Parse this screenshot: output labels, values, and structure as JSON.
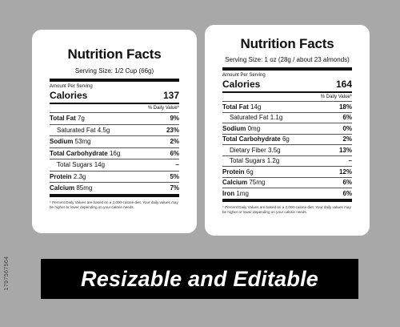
{
  "left": {
    "title": "Nutrition Facts",
    "serving": "Serving Size: 1/2 Cup (66g)",
    "amount_per_serving": "Amount Per Serving",
    "calories_label": "Calories",
    "calories_value": "137",
    "dv_header": "% Daily Value*",
    "rows": [
      {
        "name": "Total Fat",
        "qty": "7g",
        "pct": "9%"
      },
      {
        "name": "Saturated Fat",
        "qty": "4.5g",
        "pct": "23%"
      },
      {
        "name": "Sodium",
        "qty": "53mg",
        "pct": "2%"
      },
      {
        "name": "Total Carbohydrate",
        "qty": "16g",
        "pct": "6%"
      },
      {
        "name": "Total Sugars",
        "qty": "14g",
        "pct": "–"
      },
      {
        "name": "Protein",
        "qty": "2.3g",
        "pct": "5%"
      },
      {
        "name": "Calcium",
        "qty": "85mg",
        "pct": "7%"
      }
    ],
    "footnote": "* Percent Daily Values are based on a 2,000-calorie diet. Your daily values may be higher or lower depending on your calorie needs."
  },
  "right": {
    "title": "Nutrition Facts",
    "serving": "Serving Size: 1 oz (28g / about 23 almonds)",
    "amount_per_serving": "Amount Per Serving",
    "calories_label": "Calories",
    "calories_value": "164",
    "dv_header": "% Daily Value*",
    "rows": [
      {
        "name": "Total Fat",
        "qty": "14g",
        "pct": "18%"
      },
      {
        "name": "Saturated Fat",
        "qty": "1.1g",
        "pct": "6%"
      },
      {
        "name": "Sodium",
        "qty": "0mg",
        "pct": "0%"
      },
      {
        "name": "Total Carbohydrate",
        "qty": "6g",
        "pct": "2%"
      },
      {
        "name": "Dietary Fiber",
        "qty": "3.5g",
        "pct": "13%"
      },
      {
        "name": "Total Sugars",
        "qty": "1.2g",
        "pct": "–"
      },
      {
        "name": "Protein",
        "qty": "6g",
        "pct": "12%"
      },
      {
        "name": "Calcium",
        "qty": "75mg",
        "pct": "6%"
      },
      {
        "name": "Iron",
        "qty": "1mg",
        "pct": "6%"
      }
    ],
    "footnote": "* Percent Daily Values are based on a 2,000-calorie diet. Your daily values may be higher or lower depending on your calorie needs."
  },
  "banner": "Resizable and Editable",
  "side_id": "1797567564",
  "colors": {
    "background": "#a8a8a8",
    "banner": "#000000",
    "label": "#ffffff"
  }
}
